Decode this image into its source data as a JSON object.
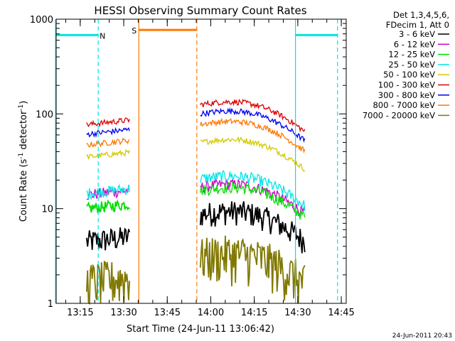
{
  "chart_data": {
    "type": "line",
    "title": "HESSI Observing Summary Count Rates",
    "xlabel": "Start Time (24-Jun-11 13:06:42)",
    "ylabel_main": "Count Rate (s",
    "ylabel_sup1": "-1",
    "ylabel_mid": " detector",
    "ylabel_sup2": "-1",
    "ylabel_end": ")",
    "xlim": [
      0,
      100
    ],
    "ylim": [
      1,
      1000
    ],
    "yscale": "log",
    "x_ticks": [
      {
        "value": 8.3,
        "label": "13:15"
      },
      {
        "value": 23.3,
        "label": "13:30"
      },
      {
        "value": 38.3,
        "label": "13:45"
      },
      {
        "value": 53.3,
        "label": "14:00"
      },
      {
        "value": 68.3,
        "label": "14:15"
      },
      {
        "value": 83.3,
        "label": "14:30"
      },
      {
        "value": 98.3,
        "label": "14:45"
      }
    ],
    "y_ticks": [
      {
        "value": 1,
        "label": "1"
      },
      {
        "value": 10,
        "label": "10"
      },
      {
        "value": 100,
        "label": "100"
      },
      {
        "value": 1000,
        "label": "1000"
      }
    ],
    "legend_header": [
      "Det 1,3,4,5,6,",
      "FDecim 1, Att 0"
    ],
    "series": [
      {
        "name": "3 - 6 keV",
        "color": "#000000"
      },
      {
        "name": "6 - 12 keV",
        "color": "#cc00cc"
      },
      {
        "name": "12 - 25 keV",
        "color": "#00dd00"
      },
      {
        "name": "25 - 50 keV",
        "color": "#00e5e5"
      },
      {
        "name": "50 - 100 keV",
        "color": "#d4c800"
      },
      {
        "name": "100 - 300 keV",
        "color": "#dd0000"
      },
      {
        "name": "300 - 800 keV",
        "color": "#0000ee"
      },
      {
        "name": "800 - 7000 keV",
        "color": "#ff7700"
      },
      {
        "name": "7000 - 20000 keV",
        "color": "#807800"
      }
    ],
    "segments": [
      {
        "x": [
          10.5,
          25.3
        ],
        "series_values": [
          4.5,
          14,
          10,
          14.5,
          35,
          77,
          61,
          47,
          1.7
        ]
      },
      {
        "x": [
          49.7,
          85.7
        ],
        "series_values": [
          7,
          13.5,
          12.5,
          16.5,
          40,
          100,
          80,
          62,
          2.5
        ]
      }
    ],
    "orbit_markers": [
      {
        "label": "N",
        "color": "#00e5e5",
        "x_solid": [
          -0.2,
          82.5
        ],
        "x_dashed": [
          14.5,
          97
        ],
        "bars": [
          [
            0,
            14.5
          ],
          [
            82.5,
            97
          ]
        ],
        "level": 680
      },
      {
        "label": "S",
        "color": "#ff7700",
        "x_solid": [
          28.5
        ],
        "x_dashed": [
          48.5
        ],
        "bars": [
          [
            28.5,
            48.5
          ]
        ],
        "level": 770
      }
    ],
    "footer_date": "24-Jun-2011 20:43"
  }
}
